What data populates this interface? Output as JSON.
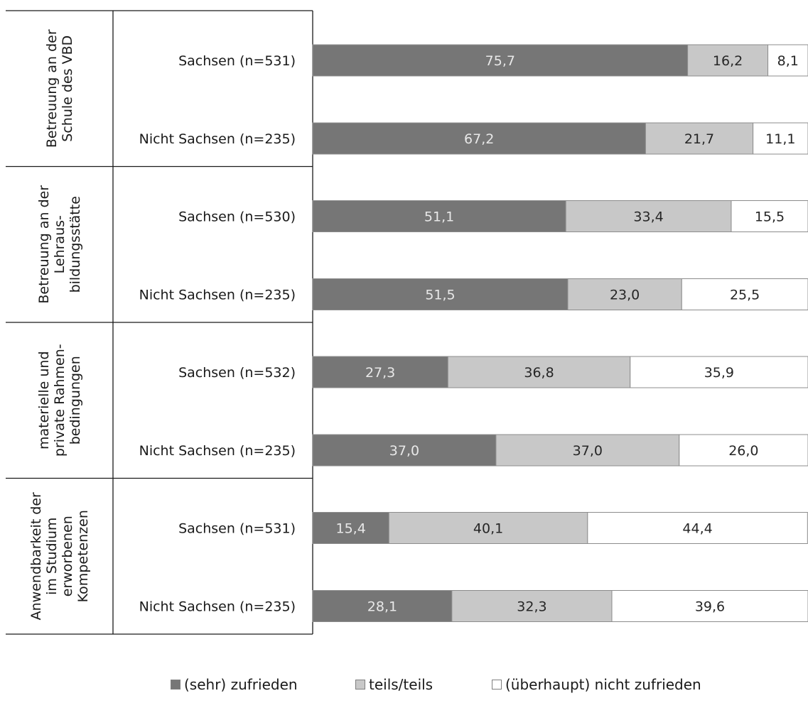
{
  "chart_data": {
    "type": "bar",
    "orientation": "horizontal",
    "stacked": "percent",
    "groups": [
      {
        "label_lines": [
          "Betreuung an der",
          "Schule des VBD"
        ],
        "rows": [
          {
            "label": "Sachsen (n=531)",
            "values": [
              "75,7",
              "16,2",
              "8,1"
            ]
          },
          {
            "label": "Nicht Sachsen (n=235)",
            "values": [
              "67,2",
              "21,7",
              "11,1"
            ]
          }
        ]
      },
      {
        "label_lines": [
          "Betreuung an der",
          "Lehraus-",
          "bildungsstätte"
        ],
        "rows": [
          {
            "label": "Sachsen (n=530)",
            "values": [
              "51,1",
              "33,4",
              "15,5"
            ]
          },
          {
            "label": "Nicht Sachsen (n=235)",
            "values": [
              "51,5",
              "23,0",
              "25,5"
            ]
          }
        ]
      },
      {
        "label_lines": [
          "materielle und",
          "private Rahmen-",
          "bedingungen"
        ],
        "rows": [
          {
            "label": "Sachsen (n=532)",
            "values": [
              "27,3",
              "36,8",
              "35,9"
            ]
          },
          {
            "label": "Nicht Sachsen (n=235)",
            "values": [
              "37,0",
              "37,0",
              "26,0"
            ]
          }
        ]
      },
      {
        "label_lines": [
          "Anwendbarkeit der",
          "im Studium",
          "erworbenen",
          "Kompetenzen"
        ],
        "rows": [
          {
            "label": "Sachsen (n=531)",
            "values": [
              "15,4",
              "40,1",
              "44,4"
            ]
          },
          {
            "label": "Nicht Sachsen (n=235)",
            "values": [
              "28,1",
              "32,3",
              "39,6"
            ]
          }
        ]
      }
    ],
    "series": [
      {
        "name": "(sehr) zufrieden",
        "color": "#767676",
        "label_color": "#e8e8e8"
      },
      {
        "name": "teils/teils",
        "color": "#c8c8c8",
        "label_color": "#262626"
      },
      {
        "name": "(überhaupt) nicht zufrieden",
        "color": "#ffffff",
        "label_color": "#262626"
      }
    ],
    "xlim": [
      0,
      100
    ],
    "legend_position": "bottom",
    "grid": false
  }
}
